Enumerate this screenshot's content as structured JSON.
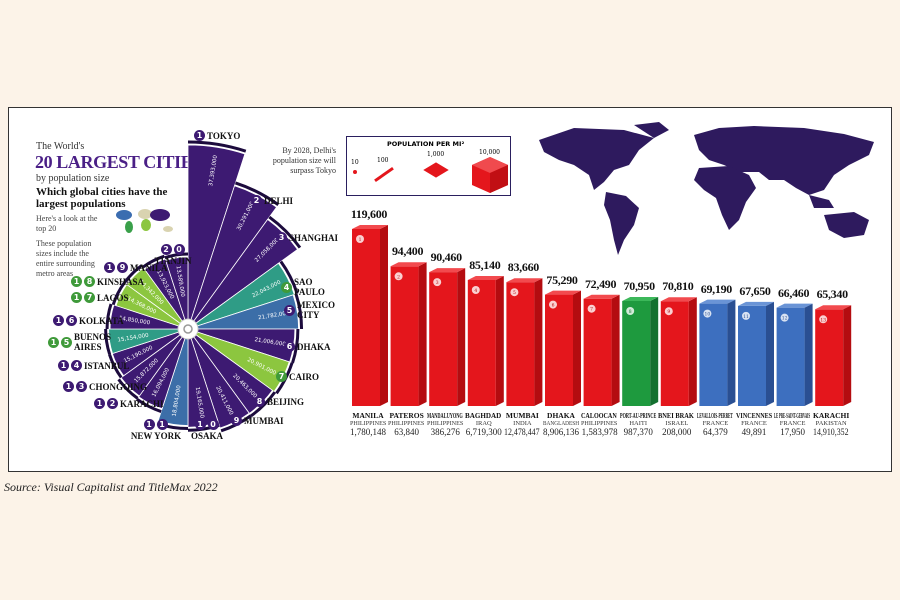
{
  "intro": {
    "pre": "The World's",
    "title": "20 LARGEST CITIES",
    "sub": "by population size",
    "question": "Which global cities have the largest populations",
    "look": "Here's a look at the top 20",
    "note": "These population sizes include the entire surrounding metro areas",
    "delhi_note": "By 2028, Delhi's population size will surpass Tokyo"
  },
  "legend": {
    "title": "POPULATION PER MI²",
    "levels": [
      "10",
      "100",
      "1,000",
      "10,000"
    ]
  },
  "source": "Source: Visual Capitalist and TitleMax 2022",
  "colors": {
    "purple": "#3d1a72",
    "teal": "#2f9c86",
    "blue": "#3c6ea8",
    "lime": "#8cc63f",
    "green": "#3f9a3a",
    "red": "#e4161c",
    "bar_green": "#1e9a3e",
    "bar_blue": "#3d6fbf"
  },
  "chart_data": [
    {
      "type": "bar",
      "title": "20 LARGEST CITIES",
      "subtitle": "by population size",
      "style": "radial",
      "categories": [
        "TOKYO",
        "DELHI",
        "SHANGHAI",
        "SAO PAULO",
        "MEXICO CITY",
        "DHAKA",
        "CAIRO",
        "BEIJING",
        "MUMBAI",
        "OSAKA",
        "NEW YORK",
        "KARACHI",
        "CHONGQING",
        "ISTANBUL",
        "BUENOS AIRES",
        "KOLKATA",
        "LAGOS",
        "KINSHASA",
        "MANILA",
        "TIANJIN"
      ],
      "values": [
        37393000,
        30291000,
        27058000,
        22043000,
        21782000,
        21006000,
        20901000,
        20463000,
        20411000,
        19165000,
        18804000,
        16094000,
        15872000,
        15190000,
        15154000,
        14850000,
        14368000,
        14342000,
        13923000,
        13589000
      ],
      "value_labels": [
        "37,393,000",
        "30,291,000",
        "27,058,000",
        "22,043,000",
        "21,782,000",
        "21,006,000",
        "20,901,000",
        "20,463,000",
        "20,411,000",
        "19,165,000",
        "18,804,000",
        "16,094,000",
        "15,872,000",
        "15,190,000",
        "15,154,000",
        "14,850,000",
        "14,368,000",
        "14,342,000",
        "13,923,000",
        "13,589,000"
      ],
      "ranks": [
        "1",
        "2",
        "3",
        "4",
        "5",
        "6",
        "7",
        "8",
        "9",
        "10",
        "11",
        "12",
        "13",
        "14",
        "15",
        "16",
        "17",
        "18",
        "19",
        "20"
      ],
      "wedge_colors": [
        "purple",
        "purple",
        "purple",
        "teal",
        "blue",
        "purple",
        "lime",
        "purple",
        "purple",
        "purple",
        "blue",
        "purple",
        "purple",
        "purple",
        "teal",
        "purple",
        "lime",
        "lime",
        "purple",
        "purple"
      ],
      "badge_colors": [
        "purple",
        "purple",
        "purple",
        "green",
        "purple",
        "purple",
        "green",
        "purple",
        "purple",
        "purple",
        "purple",
        "purple",
        "purple",
        "purple",
        "green",
        "purple",
        "green",
        "green",
        "purple",
        "purple"
      ]
    },
    {
      "type": "bar",
      "title": "POPULATION PER MI²",
      "ylabel": "Population per square mile",
      "categories": [
        "MANILA",
        "PATEROS",
        "MANDALUYONG",
        "BAGHDAD",
        "MUMBAI",
        "DHAKA",
        "CALOOCAN",
        "PORT-AU-PRINCE",
        "BNEI BRAK",
        "LEVALLOIS-PERRET",
        "VINCENNES",
        "LE PRE-SAINT-GERVAIS",
        "KARACHI"
      ],
      "countries": [
        "PHILIPPINES",
        "PHILIPPINES",
        "PHILIPPINES",
        "IRAQ",
        "INDIA",
        "BANGLADESH",
        "PHILIPPINES",
        "HAITI",
        "ISRAEL",
        "FRANCE",
        "FRANCE",
        "FRANCE",
        "PAKISTAN"
      ],
      "populations": [
        "1,780,148",
        "63,840",
        "386,276",
        "6,719,300",
        "12,478,447",
        "8,906,136",
        "1,583,978",
        "987,370",
        "208,000",
        "64,379",
        "49,891",
        "17,950",
        "14,910,352"
      ],
      "values": [
        119600,
        94400,
        90460,
        85140,
        83660,
        75290,
        72490,
        70950,
        70810,
        69190,
        67650,
        66460,
        65340
      ],
      "value_labels": [
        "119,600",
        "94,400",
        "90,460",
        "85,140",
        "83,660",
        "75,290",
        "72,490",
        "70,950",
        "70,810",
        "69,190",
        "67,650",
        "66,460",
        "65,340"
      ],
      "bar_colors": [
        "red",
        "red",
        "red",
        "red",
        "red",
        "red",
        "red",
        "bar_green",
        "red",
        "bar_blue",
        "bar_blue",
        "bar_blue",
        "red"
      ],
      "ylim": [
        0,
        130000
      ]
    }
  ]
}
